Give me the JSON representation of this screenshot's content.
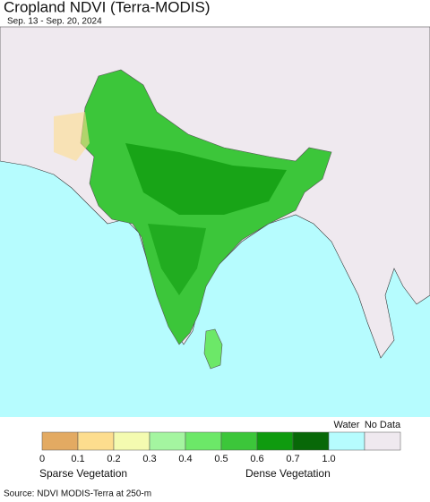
{
  "header": {
    "title": "Cropland NDVI (Terra-MODIS)",
    "subtitle": "Sep. 13 - Sep. 20, 2024"
  },
  "legend": {
    "colors": [
      "#e3aa62",
      "#fddd8e",
      "#f4fbb0",
      "#a4f5a0",
      "#6ce868",
      "#3cc63a",
      "#0f9b0f",
      "#086808"
    ],
    "ticks": [
      "0",
      "0.1",
      "0.2",
      "0.3",
      "0.4",
      "0.5",
      "0.6",
      "0.7",
      "1.0"
    ],
    "water": {
      "label": "Water",
      "color": "#b6fcfe"
    },
    "no_data": {
      "label": "No Data",
      "color": "#efe9ef"
    },
    "low_label": "Sparse Vegetation",
    "high_label": "Dense Vegetation"
  },
  "footer": {
    "source": "Source: NDVI MODIS-Terra at 250-m"
  }
}
